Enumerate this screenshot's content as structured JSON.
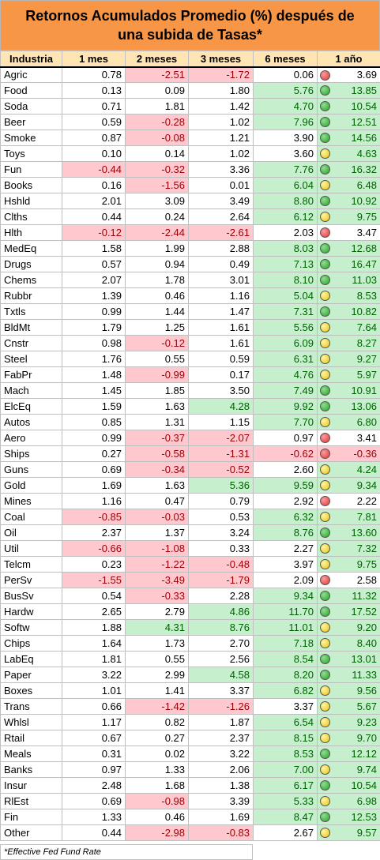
{
  "title": "Retornos Acumulados Promedio (%) después de una subida de Tasas*",
  "footnote": "*Effective Fed Fund Rate",
  "chart_data": {
    "type": "table",
    "columns": [
      "Industria",
      "1 mes",
      "2 meses",
      "3 meses",
      "6 meses",
      "1 año"
    ],
    "rows": [
      [
        "Agric",
        "0.78",
        "-2.51",
        "-1.72",
        "0.06",
        "3.69"
      ],
      [
        "Food",
        "0.13",
        "0.09",
        "1.80",
        "5.76",
        "13.85"
      ],
      [
        "Soda",
        "0.71",
        "1.81",
        "1.42",
        "4.70",
        "10.54"
      ],
      [
        "Beer",
        "0.59",
        "-0.28",
        "1.02",
        "7.96",
        "12.51"
      ],
      [
        "Smoke",
        "0.87",
        "-0.08",
        "1.21",
        "3.90",
        "14.56"
      ],
      [
        "Toys",
        "0.10",
        "0.14",
        "1.02",
        "3.60",
        "4.63"
      ],
      [
        "Fun",
        "-0.44",
        "-0.32",
        "3.36",
        "7.76",
        "16.32"
      ],
      [
        "Books",
        "0.16",
        "-1.56",
        "0.01",
        "6.04",
        "6.48"
      ],
      [
        "Hshld",
        "2.01",
        "3.09",
        "3.49",
        "8.80",
        "10.92"
      ],
      [
        "Clths",
        "0.44",
        "0.24",
        "2.64",
        "6.12",
        "9.75"
      ],
      [
        "Hlth",
        "-0.12",
        "-2.44",
        "-2.61",
        "2.03",
        "3.47"
      ],
      [
        "MedEq",
        "1.58",
        "1.99",
        "2.88",
        "8.03",
        "12.68"
      ],
      [
        "Drugs",
        "0.57",
        "0.94",
        "0.49",
        "7.13",
        "16.47"
      ],
      [
        "Chems",
        "2.07",
        "1.78",
        "3.01",
        "8.10",
        "11.03"
      ],
      [
        "Rubbr",
        "1.39",
        "0.46",
        "1.16",
        "5.04",
        "8.53"
      ],
      [
        "Txtls",
        "0.99",
        "1.44",
        "1.47",
        "7.31",
        "10.82"
      ],
      [
        "BldMt",
        "1.79",
        "1.25",
        "1.61",
        "5.56",
        "7.64"
      ],
      [
        "Cnstr",
        "0.98",
        "-0.12",
        "1.61",
        "6.09",
        "8.27"
      ],
      [
        "Steel",
        "1.76",
        "0.55",
        "0.59",
        "6.31",
        "9.27"
      ],
      [
        "FabPr",
        "1.48",
        "-0.99",
        "0.17",
        "4.76",
        "5.97"
      ],
      [
        "Mach",
        "1.45",
        "1.85",
        "3.50",
        "7.49",
        "10.91"
      ],
      [
        "ElcEq",
        "1.59",
        "1.63",
        "4.28",
        "9.92",
        "13.06"
      ],
      [
        "Autos",
        "0.85",
        "1.31",
        "1.15",
        "7.70",
        "6.80"
      ],
      [
        "Aero",
        "0.99",
        "-0.37",
        "-2.07",
        "0.97",
        "3.41"
      ],
      [
        "Ships",
        "0.27",
        "-0.58",
        "-1.31",
        "-0.62",
        "-0.36"
      ],
      [
        "Guns",
        "0.69",
        "-0.34",
        "-0.52",
        "2.60",
        "4.24"
      ],
      [
        "Gold",
        "1.69",
        "1.63",
        "5.36",
        "9.59",
        "9.34"
      ],
      [
        "Mines",
        "1.16",
        "0.47",
        "0.79",
        "2.92",
        "2.22"
      ],
      [
        "Coal",
        "-0.85",
        "-0.03",
        "0.53",
        "6.32",
        "7.81"
      ],
      [
        "Oil",
        "2.37",
        "1.37",
        "3.24",
        "8.76",
        "13.60"
      ],
      [
        "Util",
        "-0.66",
        "-1.08",
        "0.33",
        "2.27",
        "7.32"
      ],
      [
        "Telcm",
        "0.23",
        "-1.22",
        "-0.48",
        "3.97",
        "9.75"
      ],
      [
        "PerSv",
        "-1.55",
        "-3.49",
        "-1.79",
        "2.09",
        "2.58"
      ],
      [
        "BusSv",
        "0.54",
        "-0.33",
        "2.28",
        "9.34",
        "11.32"
      ],
      [
        "Hardw",
        "2.65",
        "2.79",
        "4.86",
        "11.70",
        "17.52"
      ],
      [
        "Softw",
        "1.88",
        "4.31",
        "8.76",
        "11.01",
        "9.20"
      ],
      [
        "Chips",
        "1.64",
        "1.73",
        "2.70",
        "7.18",
        "8.40"
      ],
      [
        "LabEq",
        "1.81",
        "0.55",
        "2.56",
        "8.54",
        "13.01"
      ],
      [
        "Paper",
        "3.22",
        "2.99",
        "4.58",
        "8.20",
        "11.33"
      ],
      [
        "Boxes",
        "1.01",
        "1.41",
        "3.37",
        "6.82",
        "9.56"
      ],
      [
        "Trans",
        "0.66",
        "-1.42",
        "-1.26",
        "3.37",
        "5.67"
      ],
      [
        "Whlsl",
        "1.17",
        "0.82",
        "1.87",
        "6.54",
        "9.23"
      ],
      [
        "Rtail",
        "0.67",
        "0.27",
        "2.37",
        "8.15",
        "9.70"
      ],
      [
        "Meals",
        "0.31",
        "0.02",
        "3.22",
        "8.53",
        "12.12"
      ],
      [
        "Banks",
        "0.97",
        "1.33",
        "2.06",
        "7.00",
        "9.74"
      ],
      [
        "Insur",
        "2.48",
        "1.68",
        "1.38",
        "6.17",
        "10.54"
      ],
      [
        "RlEst",
        "0.69",
        "-0.98",
        "3.39",
        "5.33",
        "6.98"
      ],
      [
        "Fin",
        "1.33",
        "0.46",
        "1.69",
        "8.47",
        "12.53"
      ],
      [
        "Other",
        "0.44",
        "-2.98",
        "-0.83",
        "2.67",
        "9.57"
      ]
    ],
    "highlight_rules": {
      "negative": "#ffc7ce",
      "positive_gt_4": "#c6efce"
    },
    "icon_rules": {
      "green": "> 10",
      "yellow": "4 to 10",
      "red": "< 4"
    }
  }
}
